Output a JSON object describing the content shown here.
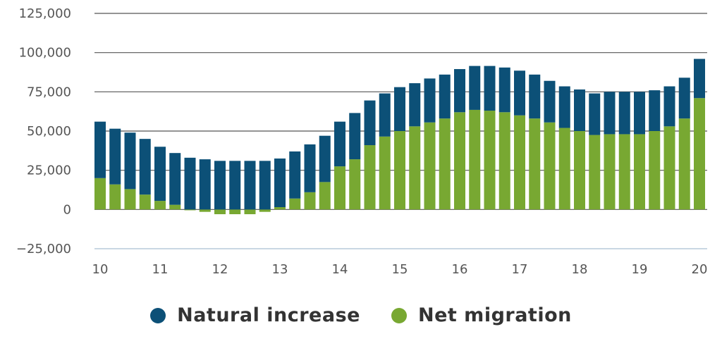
{
  "colors": {
    "natural": "#0c5077",
    "migration": "#78a832",
    "grid": "#555555",
    "axis_line": "#c9d7e3"
  },
  "chart_data": {
    "type": "bar",
    "stacked": true,
    "title": "",
    "xlabel": "",
    "ylabel": "",
    "ylim": [
      -25000,
      125000
    ],
    "y_ticks": [
      "125,000",
      "100,000",
      "75,000",
      "50,000",
      "25,000",
      "0",
      "−25,000"
    ],
    "y_tick_values": [
      125000,
      100000,
      75000,
      50000,
      25000,
      0,
      -25000
    ],
    "x_ticks": [
      "10",
      "11",
      "12",
      "13",
      "14",
      "15",
      "16",
      "17",
      "18",
      "19",
      "20"
    ],
    "x_tick_values": [
      10,
      11,
      12,
      13,
      14,
      15,
      16,
      17,
      18,
      19,
      20
    ],
    "x": [
      10.0,
      10.25,
      10.5,
      10.75,
      11.0,
      11.25,
      11.5,
      11.75,
      12.0,
      12.25,
      12.5,
      12.75,
      13.0,
      13.25,
      13.5,
      13.75,
      14.0,
      14.25,
      14.5,
      14.75,
      15.0,
      15.25,
      15.5,
      15.75,
      16.0,
      16.25,
      16.5,
      16.75,
      17.0,
      17.25,
      17.5,
      17.75,
      18.0,
      18.25,
      18.5,
      18.75,
      19.0,
      19.25,
      19.5,
      19.75,
      20.0
    ],
    "series": [
      {
        "name": "Net migration",
        "values": [
          20000,
          16000,
          13000,
          9500,
          5500,
          3000,
          -500,
          -1500,
          -3000,
          -3000,
          -3000,
          -1500,
          1500,
          7000,
          11000,
          17500,
          27500,
          32000,
          41000,
          46500,
          50000,
          53000,
          55500,
          58000,
          62000,
          63500,
          63000,
          62000,
          60000,
          58000,
          55500,
          52000,
          50000,
          47500,
          48000,
          48000,
          48000,
          50000,
          53000,
          58000,
          71000
        ]
      },
      {
        "name": "Natural increase",
        "values": [
          36000,
          35500,
          36000,
          35500,
          34500,
          33000,
          33000,
          32000,
          31000,
          31000,
          31000,
          31000,
          31000,
          30000,
          30500,
          29500,
          28500,
          29500,
          28500,
          27500,
          28000,
          27500,
          28000,
          28000,
          27500,
          28000,
          28500,
          28500,
          28500,
          28000,
          26500,
          26500,
          26500,
          26500,
          27000,
          27000,
          27000,
          26000,
          25500,
          26000,
          25000
        ]
      }
    ],
    "legend": {
      "position": "bottom"
    }
  }
}
